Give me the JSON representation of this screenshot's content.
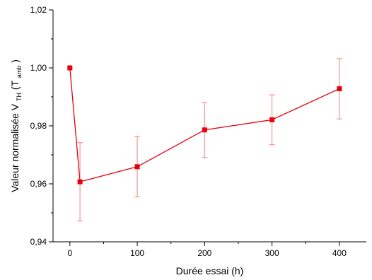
{
  "chart_data": {
    "type": "line",
    "xlabel": "Durée essai (h)",
    "ylabel": {
      "main": "Valeur normalisée V",
      "sub1": "TH",
      "paren_open": " (T",
      "sub2": "amb",
      "paren_close": ")"
    },
    "xlim": [
      -25,
      440
    ],
    "ylim": [
      0.94,
      1.02
    ],
    "x_ticks": [
      0,
      100,
      200,
      300,
      400
    ],
    "x_tick_labels": [
      "0",
      "100",
      "200",
      "300",
      "400"
    ],
    "y_ticks": [
      0.94,
      0.96,
      0.98,
      1.0,
      1.02
    ],
    "y_tick_labels": [
      "0,94",
      "0,96",
      "0,98",
      "1,00",
      "1,02"
    ],
    "grid": false,
    "series": [
      {
        "color": "#e8000b",
        "marker": "square",
        "points": [
          {
            "x": 0,
            "y": 1.0,
            "err": null
          },
          {
            "x": 15,
            "y": 0.9607,
            "err": 0.0135
          },
          {
            "x": 100,
            "y": 0.9659,
            "err": 0.0104
          },
          {
            "x": 200,
            "y": 0.9786,
            "err": 0.0095
          },
          {
            "x": 300,
            "y": 0.9821,
            "err": 0.0086
          },
          {
            "x": 400,
            "y": 0.9928,
            "err": 0.0104
          }
        ]
      }
    ]
  }
}
